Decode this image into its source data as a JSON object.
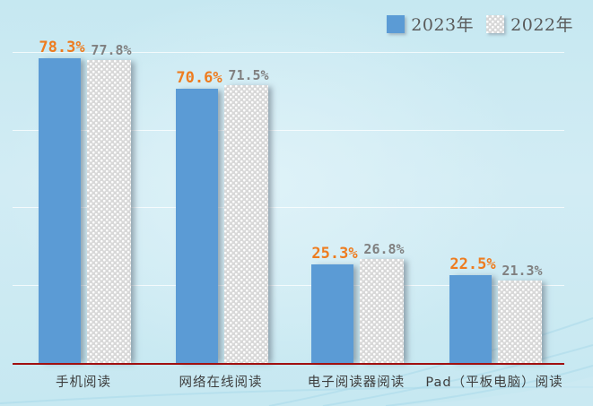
{
  "chart_data": {
    "type": "bar",
    "categories": [
      "手机阅读",
      "网络在线阅读",
      "电子阅读器阅读",
      "Pad（平板电脑）阅读"
    ],
    "series": [
      {
        "name": "2023年",
        "values": [
          78.3,
          70.6,
          25.3,
          22.5
        ]
      },
      {
        "name": "2022年",
        "values": [
          77.8,
          71.5,
          26.8,
          21.3
        ]
      }
    ],
    "value_label_format": "percent_one_decimal",
    "title": "",
    "xlabel": "",
    "ylabel": "",
    "ylim": [
      0,
      85
    ],
    "gridlines_pct": [
      20,
      40,
      60,
      80
    ],
    "grid": "faint-white-horizontal",
    "legend_position": "top-right"
  },
  "colors": {
    "bg_edge": "#c6e8f1",
    "bg_center": "#def2f8",
    "bar_2023": "#5b9bd5",
    "bar_2022_base": "#d8d8d8",
    "bar_2022_dot": "#ffffff",
    "label_2023": "#ee7c1f",
    "label_2022": "#808080",
    "axis_red": "#a00f0f",
    "category_text": "#3d3d3d",
    "legend_text": "#5a5a5a",
    "gridline": "rgba(255,255,255,0.75)",
    "wave_stroke": "#a9d9e9"
  }
}
